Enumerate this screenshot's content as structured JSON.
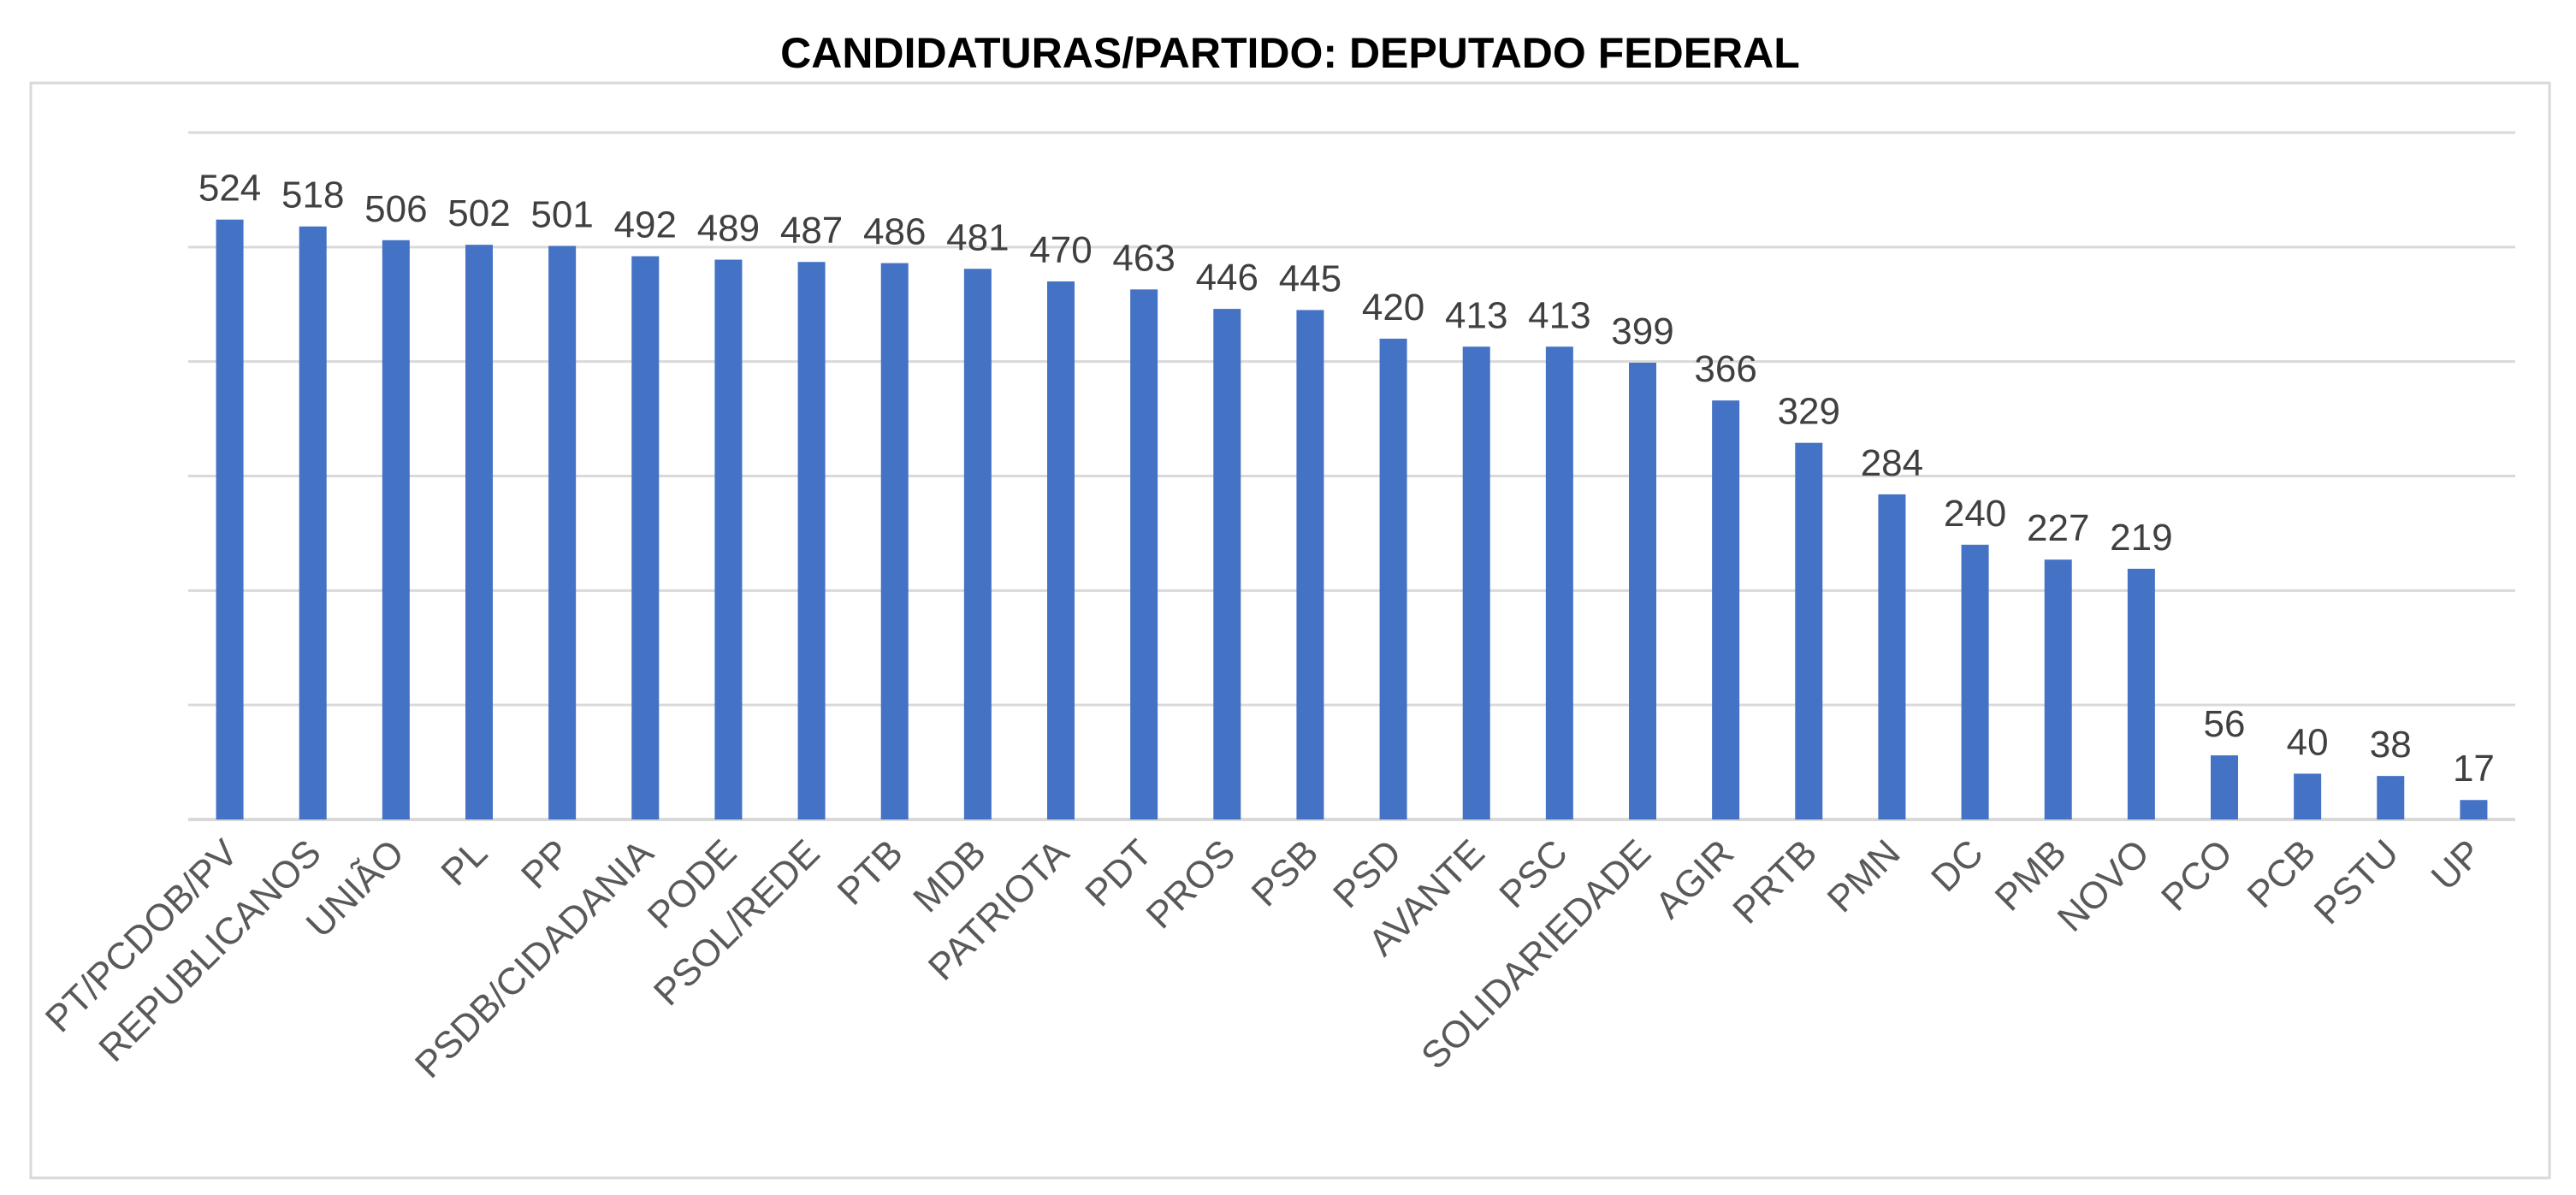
{
  "chart_data": {
    "type": "bar",
    "title": "CANDIDATURAS/PARTIDO: DEPUTADO FEDERAL",
    "xlabel": "",
    "ylabel": "",
    "ylim": [
      0,
      600
    ],
    "grid": true,
    "legend": "none",
    "bar_color": "#4472C4",
    "categories": [
      "PT/PCDOB/PV",
      "REPUBLICANOS",
      "UNIÃO",
      "PL",
      "PP",
      "PSDB/CIDADANIA",
      "PODE",
      "PSOL/REDE",
      "PTB",
      "MDB",
      "PATRIOTA",
      "PDT",
      "PROS",
      "PSB",
      "PSD",
      "AVANTE",
      "PSC",
      "SOLIDARIEDADE",
      "AGIR",
      "PRTB",
      "PMN",
      "DC",
      "PMB",
      "NOVO",
      "PCO",
      "PCB",
      "PSTU",
      "UP"
    ],
    "values": [
      524,
      518,
      506,
      502,
      501,
      492,
      489,
      487,
      486,
      481,
      470,
      463,
      446,
      445,
      420,
      413,
      413,
      399,
      366,
      329,
      284,
      240,
      227,
      219,
      56,
      40,
      38,
      17
    ]
  }
}
